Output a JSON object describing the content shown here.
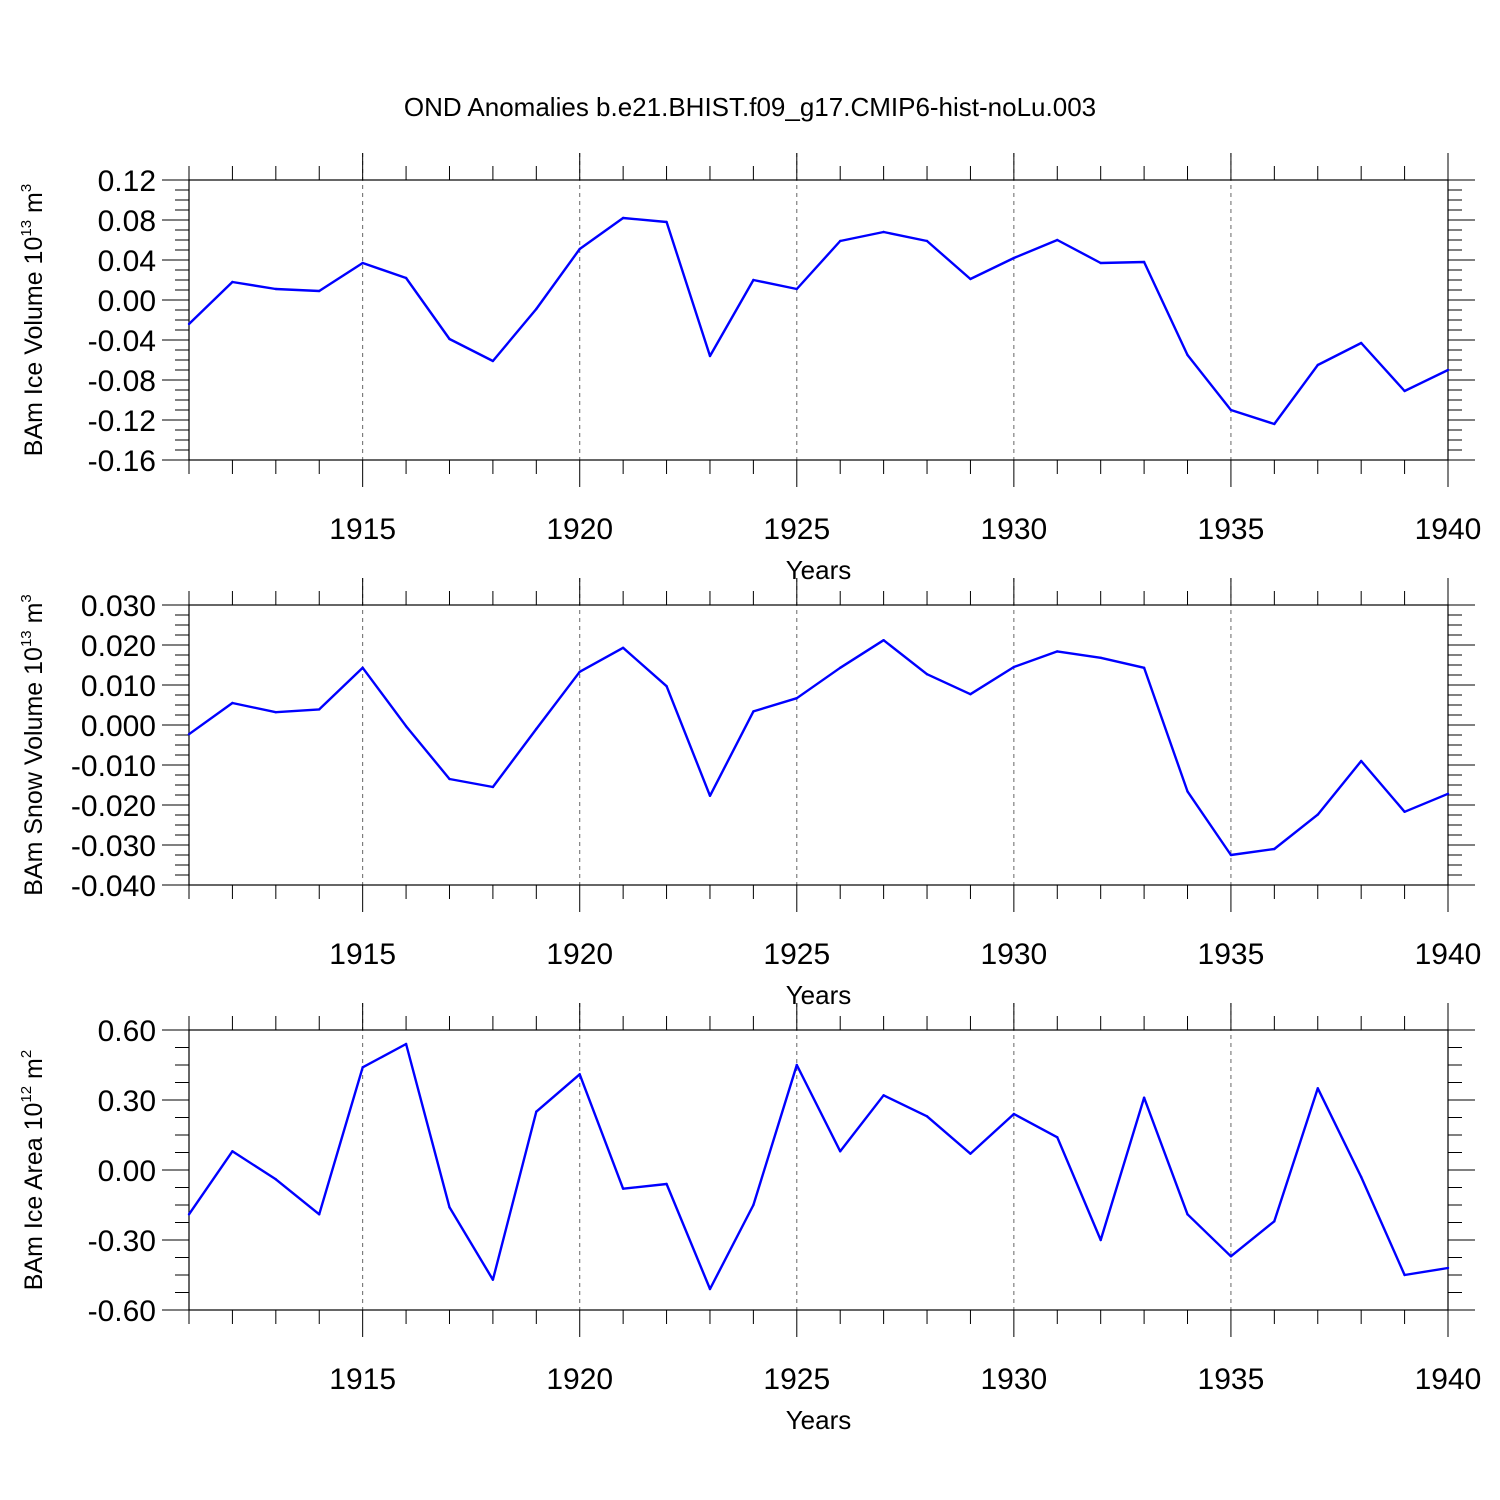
{
  "title": "OND Anomalies b.e21.BHIST.f09_g17.CMIP6-hist-noLu.003",
  "colors": {
    "series": "#0000ff",
    "axis": "#000000",
    "grid": "#666666"
  },
  "chart_data": [
    {
      "type": "line",
      "ylabel": {
        "main": "BAm Ice Volume 10",
        "sup": "13",
        "unit": " m",
        "unit_sup": "3"
      },
      "xlabel": "Years",
      "xlim": [
        1911,
        1940
      ],
      "ylim": [
        -0.16,
        0.12
      ],
      "yticks": [
        -0.16,
        -0.12,
        -0.08,
        -0.04,
        0.0,
        0.04,
        0.08,
        0.12
      ],
      "ytick_labels": [
        "-0.16",
        "-0.12",
        "-0.08",
        "-0.04",
        "0.00",
        "0.04",
        "0.08",
        "0.12"
      ],
      "xticks": [
        1915,
        1920,
        1925,
        1930,
        1935,
        1940
      ],
      "xtick_labels": [
        "1915",
        "1920",
        "1925",
        "1930",
        "1935",
        "1940"
      ],
      "x": [
        1911,
        1912,
        1913,
        1914,
        1915,
        1916,
        1917,
        1918,
        1919,
        1920,
        1921,
        1922,
        1923,
        1924,
        1925,
        1926,
        1927,
        1928,
        1929,
        1930,
        1931,
        1932,
        1933,
        1934,
        1935,
        1936,
        1937,
        1938,
        1939,
        1940
      ],
      "values": [
        -0.024,
        0.018,
        0.011,
        0.009,
        0.037,
        0.022,
        -0.039,
        -0.061,
        -0.009,
        0.051,
        0.082,
        0.078,
        -0.056,
        0.02,
        0.011,
        0.059,
        0.068,
        0.059,
        0.021,
        0.042,
        0.06,
        0.037,
        0.038,
        -0.055,
        -0.11,
        -0.124,
        -0.065,
        -0.043,
        -0.091,
        -0.07
      ]
    },
    {
      "type": "line",
      "ylabel": {
        "main": "BAm Snow Volume 10",
        "sup": "13",
        "unit": " m",
        "unit_sup": "3"
      },
      "xlabel": "Years",
      "xlim": [
        1911,
        1940
      ],
      "ylim": [
        -0.04,
        0.03
      ],
      "yticks": [
        -0.04,
        -0.03,
        -0.02,
        -0.01,
        0.0,
        0.01,
        0.02,
        0.03
      ],
      "ytick_labels": [
        "-0.040",
        "-0.030",
        "-0.020",
        "-0.010",
        "0.000",
        "0.010",
        "0.020",
        "0.030"
      ],
      "xticks": [
        1915,
        1920,
        1925,
        1930,
        1935,
        1940
      ],
      "xtick_labels": [
        "1915",
        "1920",
        "1925",
        "1930",
        "1935",
        "1940"
      ],
      "x": [
        1911,
        1912,
        1913,
        1914,
        1915,
        1916,
        1917,
        1918,
        1919,
        1920,
        1921,
        1922,
        1923,
        1924,
        1925,
        1926,
        1927,
        1928,
        1929,
        1930,
        1931,
        1932,
        1933,
        1934,
        1935,
        1936,
        1937,
        1938,
        1939,
        1940
      ],
      "values": [
        -0.0023,
        0.0055,
        0.0032,
        0.0039,
        0.0143,
        -0.0003,
        -0.0135,
        -0.0155,
        -0.001,
        0.0133,
        0.0193,
        0.0097,
        -0.0177,
        0.0034,
        0.0067,
        0.0143,
        0.0212,
        0.0127,
        0.0077,
        0.0145,
        0.0184,
        0.0168,
        0.0143,
        -0.0166,
        -0.0325,
        -0.031,
        -0.0224,
        -0.009,
        -0.0217,
        -0.0172
      ]
    },
    {
      "type": "line",
      "ylabel": {
        "main": "BAm Ice Area 10",
        "sup": "12",
        "unit": " m",
        "unit_sup": "2"
      },
      "xlabel": "Years",
      "xlim": [
        1911,
        1940
      ],
      "ylim": [
        -0.6,
        0.6
      ],
      "yticks": [
        -0.6,
        -0.3,
        0.0,
        0.3,
        0.6
      ],
      "ytick_labels": [
        "-0.60",
        "-0.30",
        "0.00",
        "0.30",
        "0.60"
      ],
      "xticks": [
        1915,
        1920,
        1925,
        1930,
        1935,
        1940
      ],
      "xtick_labels": [
        "1915",
        "1920",
        "1925",
        "1930",
        "1935",
        "1940"
      ],
      "x": [
        1911,
        1912,
        1913,
        1914,
        1915,
        1916,
        1917,
        1918,
        1919,
        1920,
        1921,
        1922,
        1923,
        1924,
        1925,
        1926,
        1927,
        1928,
        1929,
        1930,
        1931,
        1932,
        1933,
        1934,
        1935,
        1936,
        1937,
        1938,
        1939,
        1940
      ],
      "values": [
        -0.19,
        0.08,
        -0.04,
        -0.19,
        0.44,
        0.54,
        -0.16,
        -0.47,
        0.25,
        0.41,
        -0.08,
        -0.06,
        -0.51,
        -0.15,
        0.45,
        0.08,
        0.32,
        0.23,
        0.07,
        0.24,
        0.14,
        -0.3,
        0.31,
        -0.19,
        -0.37,
        -0.22,
        0.35,
        -0.03,
        -0.45,
        -0.42
      ]
    }
  ]
}
